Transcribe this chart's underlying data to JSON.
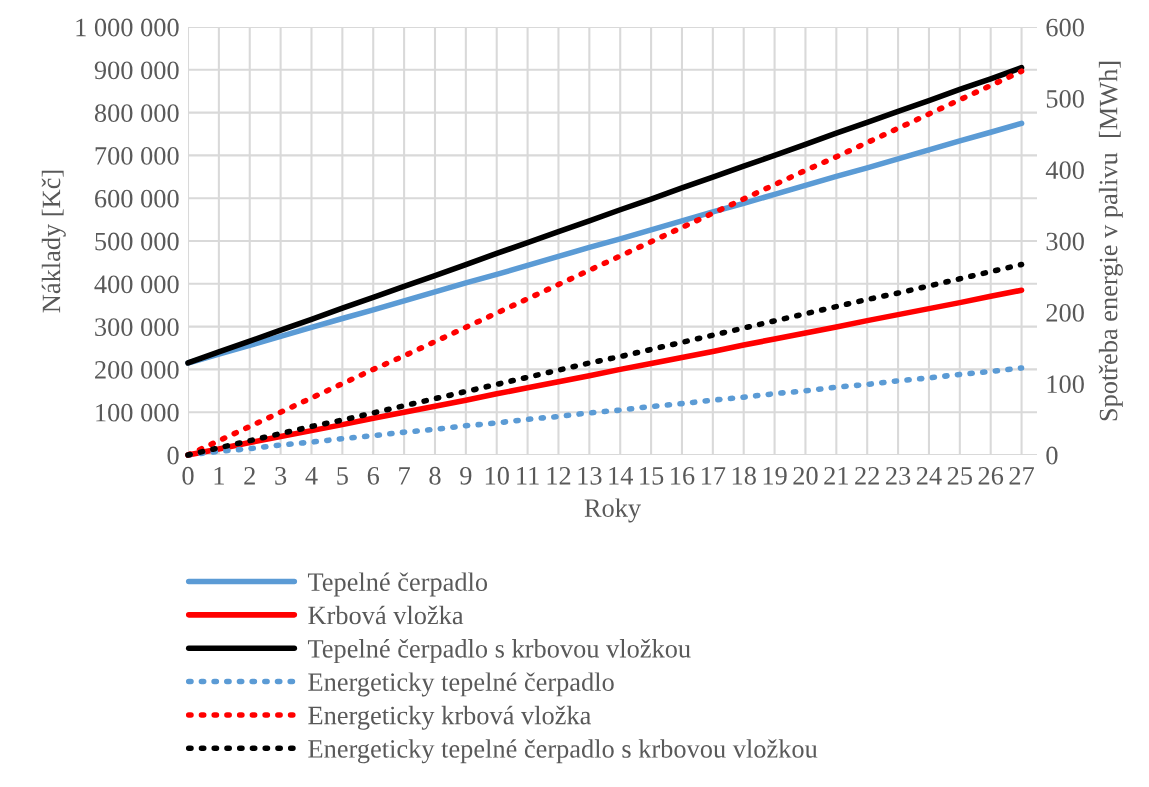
{
  "chart_data": {
    "type": "line",
    "xlabel": "Roky",
    "ylabel": "Náklady [Kč]",
    "y2label": "Spotřeba energie v palivu  [MWh]",
    "categories": [
      "0",
      "1",
      "2",
      "3",
      "4",
      "5",
      "6",
      "7",
      "8",
      "9",
      "10",
      "11",
      "12",
      "13",
      "14",
      "15",
      "16",
      "17",
      "18",
      "19",
      "20",
      "21",
      "22",
      "23",
      "24",
      "25",
      "26",
      "27"
    ],
    "ylim": [
      0,
      1000000
    ],
    "yticks": [
      {
        "value": 0,
        "label": "0"
      },
      {
        "value": 100000,
        "label": "100 000"
      },
      {
        "value": 200000,
        "label": "200 000"
      },
      {
        "value": 300000,
        "label": "300 000"
      },
      {
        "value": 400000,
        "label": "400 000"
      },
      {
        "value": 500000,
        "label": "500 000"
      },
      {
        "value": 600000,
        "label": "600 000"
      },
      {
        "value": 700000,
        "label": "700 000"
      },
      {
        "value": 800000,
        "label": "800 000"
      },
      {
        "value": 900000,
        "label": "900 000"
      },
      {
        "value": 1000000,
        "label": "1 000 000"
      }
    ],
    "y2lim": [
      0,
      600
    ],
    "y2ticks": [
      0,
      100,
      200,
      300,
      400,
      500,
      600
    ],
    "grid": true,
    "legend": "bottom",
    "series": [
      {
        "name": "Tepelné čerpadlo",
        "color": "#5b9bd5",
        "line_style": "solid",
        "values": [
          215000,
          236000,
          256000,
          277000,
          298000,
          319000,
          339000,
          360000,
          381000,
          402000,
          422000,
          443000,
          464000,
          485000,
          505000,
          526000,
          547000,
          568000,
          588000,
          609000,
          630000,
          651000,
          671000,
          692000,
          713000,
          734000,
          754000,
          775000
        ]
      },
      {
        "name": "Krbová vložka",
        "color": "#ff0000",
        "line_style": "solid",
        "values": [
          0,
          14000,
          29000,
          43000,
          57000,
          71000,
          86000,
          100000,
          114000,
          128000,
          143000,
          157000,
          171000,
          185000,
          200000,
          214000,
          228000,
          242000,
          257000,
          271000,
          285000,
          299000,
          314000,
          328000,
          342000,
          356000,
          371000,
          385000
        ]
      },
      {
        "name": "Tepelné čerpadlo s krbovou vložkou",
        "color": "#000000",
        "line_style": "solid",
        "values": [
          215000,
          241000,
          266000,
          292000,
          317000,
          343000,
          368000,
          394000,
          419000,
          445000,
          471000,
          496000,
          522000,
          547000,
          573000,
          598000,
          624000,
          649000,
          675000,
          700000,
          726000,
          752000,
          777000,
          803000,
          828000,
          854000,
          879000,
          905000
        ]
      },
      {
        "name": "Energeticky tepelné čerpadlo",
        "color": "#5b9bd5",
        "line_style": "dotted",
        "axis": "y2",
        "values": [
          0,
          5,
          9,
          14,
          18,
          23,
          27,
          32,
          36,
          41,
          45,
          50,
          54,
          59,
          63,
          68,
          72,
          77,
          81,
          86,
          90,
          95,
          99,
          104,
          108,
          113,
          117,
          122
        ]
      },
      {
        "name": "Energeticky krbová vložka",
        "color": "#ff0000",
        "line_style": "dotted",
        "axis": "y2",
        "values": [
          0,
          20,
          40,
          60,
          80,
          100,
          120,
          139,
          159,
          179,
          199,
          219,
          239,
          259,
          279,
          299,
          319,
          339,
          359,
          379,
          399,
          418,
          438,
          458,
          478,
          498,
          518,
          538
        ]
      },
      {
        "name": "Energeticky tepelné čerpadlo s krbovou vložkou",
        "color": "#000000",
        "line_style": "dotted",
        "axis": "y2",
        "values": [
          0,
          10,
          20,
          30,
          40,
          49,
          59,
          69,
          79,
          89,
          99,
          109,
          119,
          129,
          138,
          148,
          158,
          168,
          178,
          188,
          198,
          208,
          218,
          227,
          237,
          247,
          257,
          267
        ]
      }
    ]
  }
}
